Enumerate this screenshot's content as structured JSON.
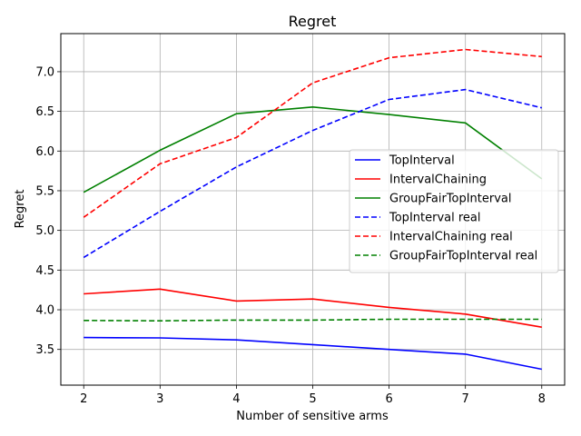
{
  "chart_data": {
    "type": "line",
    "title": "Regret",
    "xlabel": "Number of sensitive arms",
    "ylabel": "Regret",
    "x": [
      2,
      3,
      4,
      5,
      6,
      7,
      8
    ],
    "xlim": [
      1.7,
      8.3
    ],
    "ylim": [
      3.05,
      7.48
    ],
    "xticks": [
      2,
      3,
      4,
      5,
      6,
      7,
      8
    ],
    "yticks": [
      3.5,
      4.0,
      4.5,
      5.0,
      5.5,
      6.0,
      6.5,
      7.0
    ],
    "ytick_labels": [
      "3.5",
      "4.0",
      "4.5",
      "5.0",
      "5.5",
      "6.0",
      "6.5",
      "7.0"
    ],
    "grid": true,
    "legend_position": "center-right",
    "series": [
      {
        "name": "TopInterval",
        "color": "#0000ff",
        "style": "solid",
        "values": [
          3.65,
          3.645,
          3.62,
          3.56,
          3.5,
          3.44,
          3.25
        ]
      },
      {
        "name": "IntervalChaining",
        "color": "#ff0000",
        "style": "solid",
        "values": [
          4.2,
          4.26,
          4.11,
          4.135,
          4.03,
          3.945,
          3.78
        ]
      },
      {
        "name": "GroupFairTopInterval",
        "color": "#008000",
        "style": "solid",
        "values": [
          5.48,
          6.01,
          6.47,
          6.555,
          6.46,
          6.355,
          5.65
        ]
      },
      {
        "name": "TopInterval real",
        "color": "#0000ff",
        "style": "dashed",
        "values": [
          4.66,
          5.24,
          5.8,
          6.26,
          6.65,
          6.775,
          6.545
        ]
      },
      {
        "name": "IntervalChaining real",
        "color": "#ff0000",
        "style": "dashed",
        "values": [
          5.165,
          5.84,
          6.17,
          6.86,
          7.175,
          7.28,
          7.19
        ]
      },
      {
        "name": "GroupFairTopInterval real",
        "color": "#008000",
        "style": "dashed",
        "values": [
          3.865,
          3.86,
          3.87,
          3.87,
          3.88,
          3.88,
          3.88
        ]
      }
    ]
  }
}
